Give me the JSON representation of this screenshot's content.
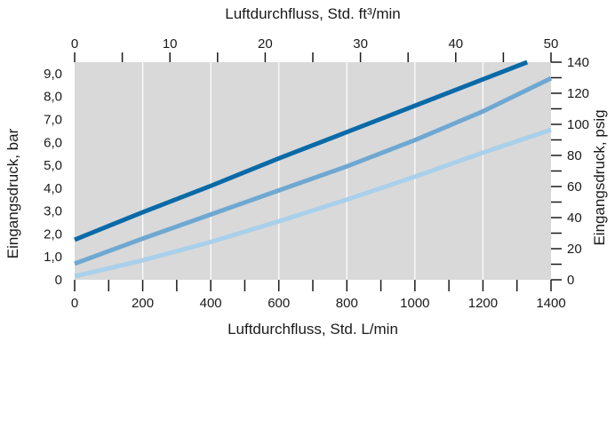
{
  "chart_data": {
    "type": "line",
    "xlabel_bottom": "Luftdurchfluss, Std. L/min",
    "xlabel_top": "Luftdurchfluss, Std. ft³/min",
    "ylabel_left": "Eingangsdruck, bar",
    "ylabel_right": "Eingangsdruck, psig",
    "x_bottom_range": [
      0,
      1400
    ],
    "x_top_range": [
      0,
      50
    ],
    "y_left_range": [
      0,
      9.5
    ],
    "y_right_range": [
      0,
      140
    ],
    "x_bottom_ticks": [
      "0",
      "200",
      "400",
      "600",
      "800",
      "1000",
      "1200",
      "1400"
    ],
    "x_top_ticks": [
      "0",
      "10",
      "20",
      "30",
      "40",
      "50"
    ],
    "y_left_ticks": [
      "0",
      "1,0",
      "2,0",
      "3,0",
      "4,0",
      "5,0",
      "6,0",
      "7,0",
      "8,0",
      "9,0"
    ],
    "y_right_ticks": [
      "0",
      "20",
      "40",
      "60",
      "80",
      "100",
      "120",
      "140"
    ],
    "grid": true,
    "plot_background": "#d9d9d9",
    "series": [
      {
        "color": "#0a6aa8",
        "x": [
          0,
          200,
          400,
          600,
          800,
          1000,
          1200,
          1330
        ],
        "y": [
          1.75,
          2.95,
          4.1,
          5.3,
          6.45,
          7.6,
          8.75,
          9.5
        ]
      },
      {
        "color": "#6ea8d2",
        "x": [
          0,
          200,
          400,
          600,
          800,
          1000,
          1200,
          1400
        ],
        "y": [
          0.7,
          1.8,
          2.85,
          3.9,
          4.95,
          6.1,
          7.35,
          8.8
        ]
      },
      {
        "color": "#a9d0ea",
        "x": [
          0,
          200,
          400,
          600,
          800,
          1000,
          1200,
          1400
        ],
        "y": [
          0.15,
          0.85,
          1.65,
          2.55,
          3.5,
          4.5,
          5.55,
          6.55
        ]
      }
    ]
  }
}
